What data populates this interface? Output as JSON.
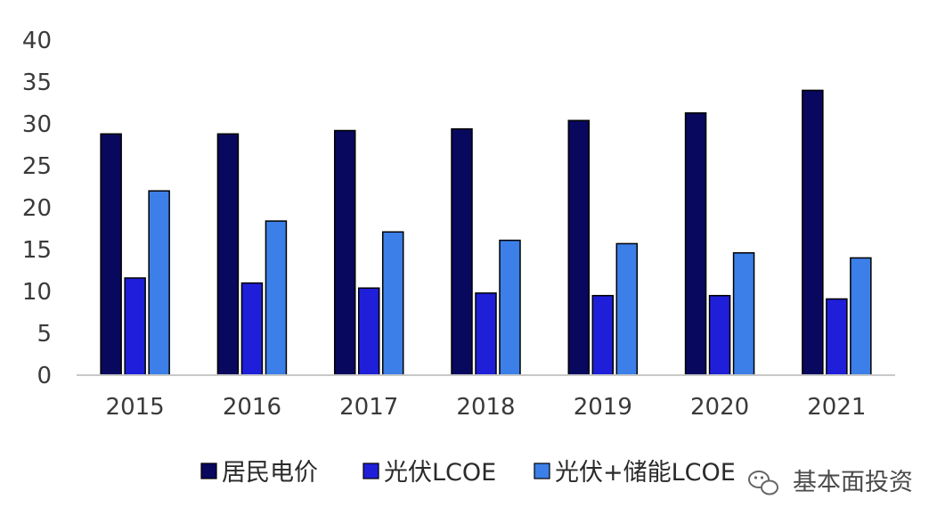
{
  "chart_data": {
    "type": "bar",
    "title": "",
    "xlabel": "",
    "ylabel": "",
    "ylim": [
      0,
      40
    ],
    "yticks": [
      0,
      5,
      10,
      15,
      20,
      25,
      30,
      35,
      40
    ],
    "categories": [
      "2015",
      "2016",
      "2017",
      "2018",
      "2019",
      "2020",
      "2021"
    ],
    "series": [
      {
        "name": "居民电价",
        "color": "#08085e",
        "values": [
          28.8,
          28.8,
          29.2,
          29.4,
          30.4,
          31.3,
          34.0
        ]
      },
      {
        "name": "光伏LCOE",
        "color": "#1f1fd9",
        "values": [
          11.6,
          11.0,
          10.4,
          9.8,
          9.5,
          9.5,
          9.1
        ]
      },
      {
        "name": "光伏+储能LCOE",
        "color": "#3c7fe8",
        "values": [
          22.0,
          18.4,
          17.1,
          16.1,
          15.7,
          14.6,
          14.0
        ]
      }
    ],
    "legend_position": "bottom",
    "grid": false
  },
  "watermark": {
    "text": "基本面投资",
    "icon": "wechat-icon"
  }
}
